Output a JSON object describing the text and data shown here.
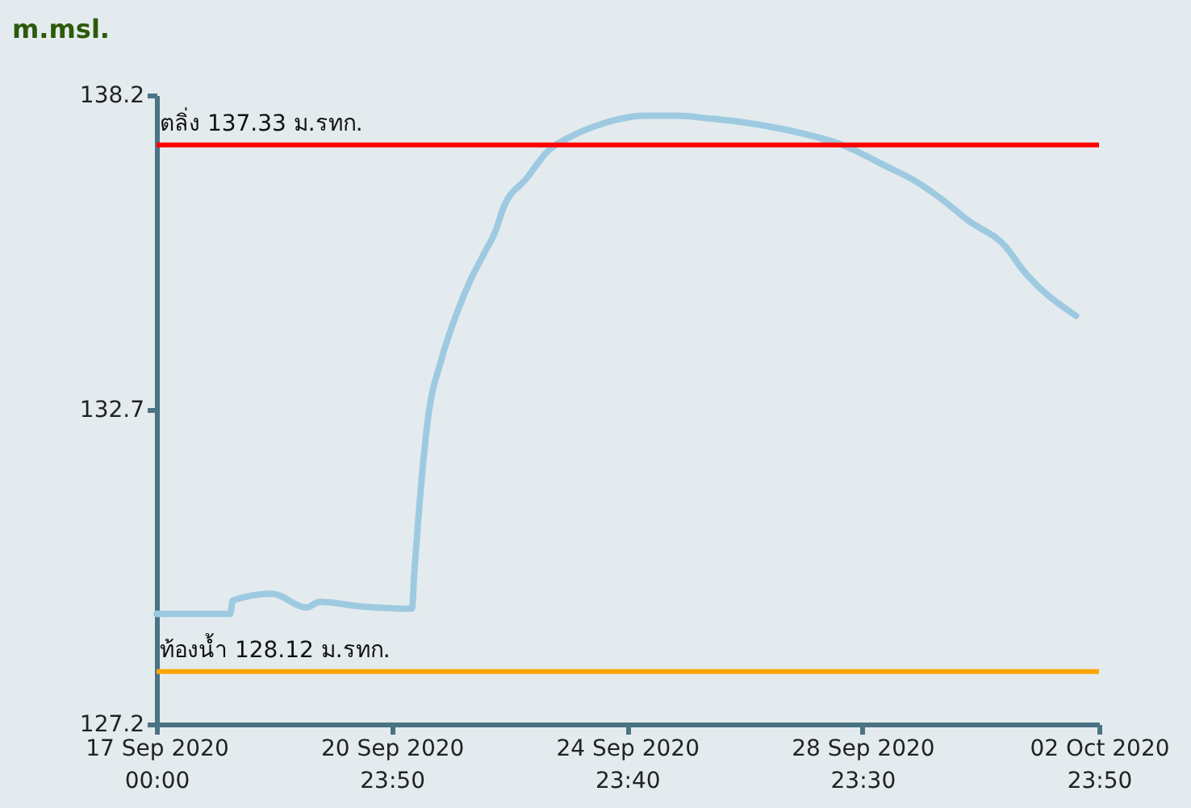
{
  "chart_data": {
    "type": "line",
    "ylabel": "m.msl.",
    "x": [
      "2020-09-17T00:00",
      "2020-09-18T06:00",
      "2020-09-18T07:00",
      "2020-09-18T23:00",
      "2020-09-19T13:00",
      "2020-09-19T18:30",
      "2020-09-20T11:00",
      "2020-09-21T08:00",
      "2020-09-21T09:00",
      "2020-09-21T14:30",
      "2020-09-21T20:00",
      "2020-09-22T02:30",
      "2020-09-22T08:00",
      "2020-09-22T13:30",
      "2020-09-22T18:00",
      "2020-09-22T21:00",
      "2020-09-23T07:00",
      "2020-09-23T15:30",
      "2020-09-24T00:30",
      "2020-09-24T13:30",
      "2020-09-25T07:00",
      "2020-09-25T20:00",
      "2020-09-26T09:30",
      "2020-09-27T03:00",
      "2020-09-28T01:00",
      "2020-09-28T14:00",
      "2020-09-29T09:30",
      "2020-09-29T20:30",
      "2020-09-30T07:30",
      "2020-09-30T18:30",
      "2020-10-01T10:00",
      "2020-10-01T16:30",
      "2020-10-02T14:30"
    ],
    "series": [
      {
        "color": "#9ecae1",
        "values": [
          129.13,
          129.13,
          129.36,
          129.48,
          129.24,
          129.34,
          129.26,
          129.22,
          129.85,
          132.53,
          133.57,
          134.41,
          134.98,
          135.44,
          135.82,
          136.2,
          136.76,
          137.23,
          137.47,
          137.7,
          137.84,
          137.84,
          137.79,
          137.7,
          137.51,
          137.35,
          136.95,
          136.71,
          136.39,
          136.01,
          135.54,
          135.16,
          134.34
        ]
      }
    ],
    "xlim": [
      "2020-09-17T00:00",
      "2020-10-02T23:50"
    ],
    "xticks": [
      {
        "value": "2020-09-17T00:00",
        "label": "17 Sep 2020\n00:00"
      },
      {
        "value": "2020-09-20T23:50",
        "label": "20 Sep 2020\n23:50"
      },
      {
        "value": "2020-09-24T23:40",
        "label": "24 Sep 2020\n23:40"
      },
      {
        "value": "2020-09-28T23:30",
        "label": "28 Sep 2020\n23:30"
      },
      {
        "value": "2020-10-02T23:50",
        "label": "02 Oct 2020\n23:50"
      }
    ],
    "ylim": [
      127.2,
      138.2
    ],
    "yticks": [
      127.2,
      132.7,
      138.2
    ],
    "ref_lines": [
      {
        "axis": "y",
        "value": 137.33,
        "label": "ตลิ่ง 137.33 ม.รทก.",
        "color": "#ff0000"
      },
      {
        "axis": "y",
        "value": 128.12,
        "label": "ท้องน้ำ 128.12 ม.รทก.",
        "color": "#ffa500"
      }
    ]
  }
}
